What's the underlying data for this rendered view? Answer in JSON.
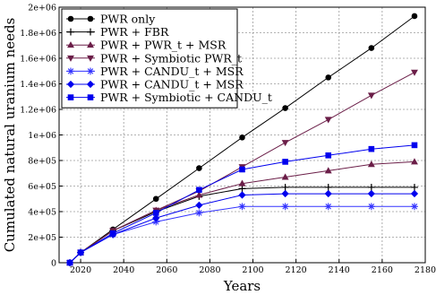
{
  "chart_data": {
    "type": "line",
    "xlabel": "Years",
    "ylabel": "Cumulated natural uranium needs",
    "xlim": [
      2010,
      2180
    ],
    "ylim": [
      0,
      2000000
    ],
    "xticks": [
      2020,
      2040,
      2060,
      2080,
      2100,
      2120,
      2140,
      2160,
      2180
    ],
    "xtick_labels": [
      "2020",
      "2040",
      "2060",
      "2080",
      "2100",
      "2120",
      "2140",
      "2160",
      "2180"
    ],
    "yticks": [
      0,
      200000,
      400000,
      600000,
      800000,
      1000000,
      1200000,
      1400000,
      1600000,
      1800000,
      2000000
    ],
    "ytick_labels": [
      "0",
      "2e+05",
      "4e+05",
      "6e+05",
      "8e+05",
      "1e+06",
      "1.2e+06",
      "1.4e+06",
      "1.6e+06",
      "1.8e+06",
      "2e+06"
    ],
    "grid": true,
    "legend_position": "top-left",
    "series": [
      {
        "name": "PWR only",
        "color": "#000000",
        "marker": "circle",
        "x": [
          2015,
          2020,
          2035,
          2055,
          2075,
          2095,
          2115,
          2135,
          2155,
          2175
        ],
        "y": [
          0,
          80000,
          260000,
          500000,
          740000,
          980000,
          1210000,
          1450000,
          1680000,
          1930000
        ]
      },
      {
        "name": "PWR + FBR",
        "color": "#000000",
        "marker": "plus",
        "x": [
          2015,
          2020,
          2035,
          2055,
          2075,
          2095,
          2115,
          2135,
          2155,
          2175
        ],
        "y": [
          0,
          80000,
          250000,
          400000,
          520000,
          580000,
          590000,
          590000,
          590000,
          590000
        ]
      },
      {
        "name": "PWR + PWR_t + MSR",
        "color": "#6b1e48",
        "marker": "triangle-up",
        "x": [
          2015,
          2020,
          2035,
          2055,
          2075,
          2095,
          2115,
          2135,
          2155,
          2175
        ],
        "y": [
          0,
          80000,
          250000,
          410000,
          530000,
          620000,
          670000,
          720000,
          770000,
          790000
        ]
      },
      {
        "name": "PWR + Symbiotic PWR_t",
        "color": "#6b1e48",
        "marker": "triangle-down",
        "x": [
          2015,
          2020,
          2035,
          2055,
          2075,
          2095,
          2115,
          2135,
          2155,
          2175
        ],
        "y": [
          0,
          80000,
          250000,
          410000,
          560000,
          750000,
          940000,
          1120000,
          1310000,
          1490000
        ]
      },
      {
        "name": "PWR + CANDU_t + MSR",
        "color": "#3333ff",
        "marker": "asterisk",
        "x": [
          2015,
          2020,
          2035,
          2055,
          2075,
          2095,
          2115,
          2135,
          2155,
          2175
        ],
        "y": [
          0,
          80000,
          220000,
          320000,
          390000,
          440000,
          440000,
          440000,
          440000,
          440000
        ]
      },
      {
        "name": "PWR + CANDU_t + MSR",
        "color": "#0000ee",
        "marker": "diamond",
        "x": [
          2015,
          2020,
          2035,
          2055,
          2075,
          2095,
          2115,
          2135,
          2155,
          2175
        ],
        "y": [
          0,
          80000,
          220000,
          350000,
          450000,
          530000,
          540000,
          540000,
          540000,
          540000
        ]
      },
      {
        "name": "PWR + Symbiotic + CANDU_t",
        "color": "#0000ee",
        "marker": "square",
        "x": [
          2015,
          2020,
          2035,
          2055,
          2075,
          2095,
          2115,
          2135,
          2155,
          2175
        ],
        "y": [
          0,
          80000,
          230000,
          390000,
          570000,
          730000,
          790000,
          840000,
          890000,
          920000
        ]
      }
    ]
  }
}
